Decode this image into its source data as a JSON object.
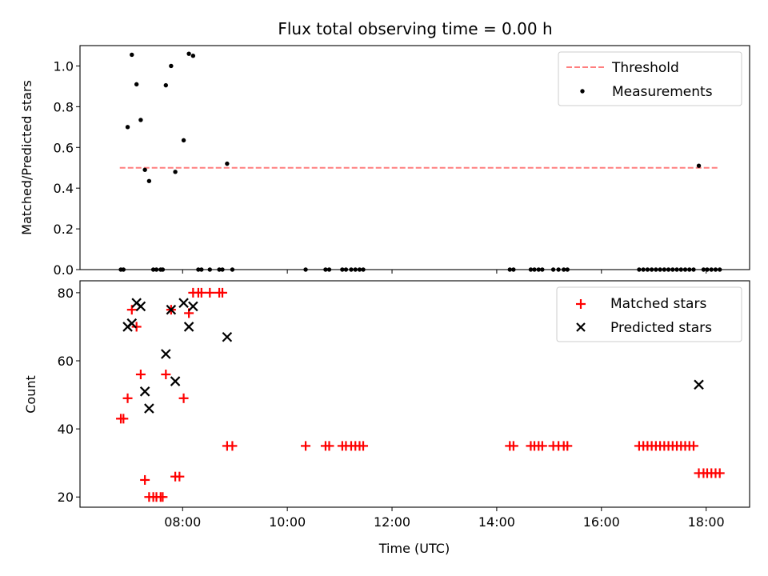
{
  "chart_data": [
    {
      "type": "scatter",
      "title": "Flux total observing time = 0.00 h",
      "xlabel": "",
      "ylabel": "Matched/Predicted stars",
      "xlim": [
        6.04,
        18.83
      ],
      "ylim": [
        0,
        1.1
      ],
      "yticks": [
        "0.0",
        "0.2",
        "0.4",
        "0.6",
        "0.8",
        "1.0"
      ],
      "legend_position": "top-right",
      "threshold": {
        "name": "Threshold",
        "value": 0.5,
        "x_range": [
          6.8,
          18.25
        ],
        "color": "#ff7f7f",
        "style": "dashed"
      },
      "series": [
        {
          "name": "Measurements",
          "marker": "dot",
          "color": "#000000",
          "points": [
            [
              6.82,
              0
            ],
            [
              6.87,
              0
            ],
            [
              6.95,
              0.7
            ],
            [
              7.03,
              1.055
            ],
            [
              7.12,
              0.91
            ],
            [
              7.2,
              0.735
            ],
            [
              7.28,
              0.49
            ],
            [
              7.36,
              0.435
            ],
            [
              7.44,
              0
            ],
            [
              7.5,
              0
            ],
            [
              7.58,
              0
            ],
            [
              7.62,
              0
            ],
            [
              7.68,
              0.905
            ],
            [
              7.78,
              1.0
            ],
            [
              7.86,
              0.48
            ],
            [
              8.02,
              0.635
            ],
            [
              8.12,
              1.06
            ],
            [
              8.2,
              1.05
            ],
            [
              8.3,
              0
            ],
            [
              8.36,
              0
            ],
            [
              8.52,
              0
            ],
            [
              8.7,
              0
            ],
            [
              8.76,
              0
            ],
            [
              8.85,
              0.52
            ],
            [
              8.95,
              0
            ],
            [
              10.35,
              0
            ],
            [
              10.73,
              0
            ],
            [
              10.8,
              0
            ],
            [
              11.05,
              0
            ],
            [
              11.12,
              0
            ],
            [
              11.22,
              0
            ],
            [
              11.3,
              0
            ],
            [
              11.38,
              0
            ],
            [
              11.45,
              0
            ],
            [
              14.25,
              0
            ],
            [
              14.32,
              0
            ],
            [
              14.65,
              0
            ],
            [
              14.72,
              0
            ],
            [
              14.8,
              0
            ],
            [
              14.87,
              0
            ],
            [
              15.08,
              0
            ],
            [
              15.18,
              0
            ],
            [
              15.28,
              0
            ],
            [
              15.35,
              0
            ],
            [
              16.72,
              0
            ],
            [
              16.8,
              0
            ],
            [
              16.88,
              0
            ],
            [
              16.96,
              0
            ],
            [
              17.04,
              0
            ],
            [
              17.12,
              0
            ],
            [
              17.2,
              0
            ],
            [
              17.28,
              0
            ],
            [
              17.36,
              0
            ],
            [
              17.44,
              0
            ],
            [
              17.52,
              0
            ],
            [
              17.6,
              0
            ],
            [
              17.68,
              0
            ],
            [
              17.76,
              0
            ],
            [
              17.86,
              0.51
            ],
            [
              17.95,
              0
            ],
            [
              18.02,
              0
            ],
            [
              18.1,
              0
            ],
            [
              18.18,
              0
            ],
            [
              18.26,
              0
            ]
          ]
        }
      ]
    },
    {
      "type": "scatter",
      "title": "",
      "xlabel": "Time (UTC)",
      "ylabel": "Count",
      "xlim": [
        6.04,
        18.83
      ],
      "ylim": [
        17,
        83.5
      ],
      "yticks": [
        "20",
        "40",
        "60",
        "80"
      ],
      "xticks": [
        {
          "value": 8,
          "label": "08:00"
        },
        {
          "value": 10,
          "label": "10:00"
        },
        {
          "value": 12,
          "label": "12:00"
        },
        {
          "value": 14,
          "label": "14:00"
        },
        {
          "value": 16,
          "label": "16:00"
        },
        {
          "value": 18,
          "label": "18:00"
        }
      ],
      "legend_position": "top-right",
      "series": [
        {
          "name": "Matched stars",
          "marker": "plus",
          "color": "#ff0000",
          "points": [
            [
              6.82,
              43
            ],
            [
              6.87,
              43
            ],
            [
              6.95,
              49
            ],
            [
              7.03,
              75
            ],
            [
              7.12,
              70
            ],
            [
              7.2,
              56
            ],
            [
              7.28,
              25
            ],
            [
              7.36,
              20
            ],
            [
              7.44,
              20
            ],
            [
              7.5,
              20
            ],
            [
              7.58,
              20
            ],
            [
              7.62,
              20
            ],
            [
              7.68,
              56
            ],
            [
              7.78,
              75
            ],
            [
              7.86,
              26
            ],
            [
              7.94,
              26
            ],
            [
              8.02,
              49
            ],
            [
              8.12,
              74
            ],
            [
              8.2,
              80
            ],
            [
              8.3,
              80
            ],
            [
              8.36,
              80
            ],
            [
              8.52,
              80
            ],
            [
              8.7,
              80
            ],
            [
              8.76,
              80
            ],
            [
              8.85,
              35
            ],
            [
              8.95,
              35
            ],
            [
              10.35,
              35
            ],
            [
              10.73,
              35
            ],
            [
              10.8,
              35
            ],
            [
              11.05,
              35
            ],
            [
              11.12,
              35
            ],
            [
              11.22,
              35
            ],
            [
              11.3,
              35
            ],
            [
              11.38,
              35
            ],
            [
              11.45,
              35
            ],
            [
              14.25,
              35
            ],
            [
              14.32,
              35
            ],
            [
              14.65,
              35
            ],
            [
              14.72,
              35
            ],
            [
              14.8,
              35
            ],
            [
              14.87,
              35
            ],
            [
              15.08,
              35
            ],
            [
              15.18,
              35
            ],
            [
              15.28,
              35
            ],
            [
              15.35,
              35
            ],
            [
              16.72,
              35
            ],
            [
              16.8,
              35
            ],
            [
              16.88,
              35
            ],
            [
              16.96,
              35
            ],
            [
              17.04,
              35
            ],
            [
              17.12,
              35
            ],
            [
              17.2,
              35
            ],
            [
              17.28,
              35
            ],
            [
              17.36,
              35
            ],
            [
              17.44,
              35
            ],
            [
              17.52,
              35
            ],
            [
              17.6,
              35
            ],
            [
              17.68,
              35
            ],
            [
              17.76,
              35
            ],
            [
              17.86,
              27
            ],
            [
              17.95,
              27
            ],
            [
              18.02,
              27
            ],
            [
              18.1,
              27
            ],
            [
              18.18,
              27
            ],
            [
              18.26,
              27
            ]
          ]
        },
        {
          "name": "Predicted stars",
          "marker": "x",
          "color": "#000000",
          "points": [
            [
              6.95,
              70
            ],
            [
              7.03,
              71
            ],
            [
              7.12,
              77
            ],
            [
              7.2,
              76
            ],
            [
              7.28,
              51
            ],
            [
              7.36,
              46
            ],
            [
              7.68,
              62
            ],
            [
              7.78,
              75
            ],
            [
              7.86,
              54
            ],
            [
              8.02,
              77
            ],
            [
              8.12,
              70
            ],
            [
              8.2,
              76
            ],
            [
              8.85,
              67
            ],
            [
              17.86,
              53
            ]
          ]
        }
      ]
    }
  ]
}
